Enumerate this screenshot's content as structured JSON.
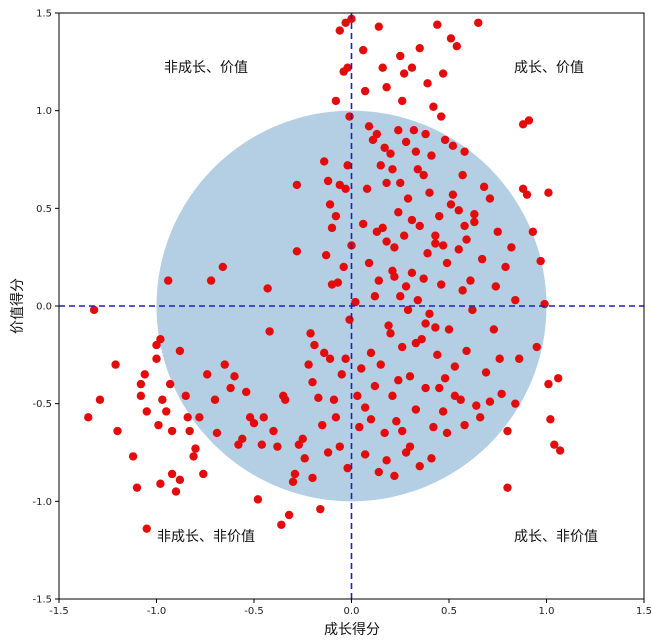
{
  "chart_data": {
    "type": "scatter",
    "xlabel": "成长得分",
    "ylabel": "价值得分",
    "xlim": [
      -1.5,
      1.5
    ],
    "ylim": [
      -1.5,
      1.5
    ],
    "xticks": [
      "-1.5",
      "-1.0",
      "-0.5",
      "0.0",
      "0.5",
      "1.0",
      "1.5"
    ],
    "yticks": [
      "-1.5",
      "-1.0",
      "-0.5",
      "0.0",
      "0.5",
      "1.0",
      "1.5"
    ],
    "grid": false,
    "reference_lines": {
      "x": 0,
      "y": 0,
      "style": "dashed",
      "color": "#1f1fbf"
    },
    "circle": {
      "center": [
        0,
        0
      ],
      "radius": 1,
      "color": "#b4cfe4"
    },
    "quadrant_labels": {
      "top_left": "非成长、价值",
      "top_right": "成长、价值",
      "bottom_left": "非成长、非价值",
      "bottom_right": "成长、非价值"
    },
    "point_color": "#e30b0b",
    "points": [
      [
        -1.32,
        -0.02
      ],
      [
        -1.35,
        -0.57
      ],
      [
        -1.29,
        -0.48
      ],
      [
        -1.21,
        -0.3
      ],
      [
        -1.2,
        -0.64
      ],
      [
        -1.12,
        -0.77
      ],
      [
        -1.1,
        -0.93
      ],
      [
        -1.08,
        -0.4
      ],
      [
        -1.08,
        -0.46
      ],
      [
        -1.06,
        -0.35
      ],
      [
        -1.05,
        -0.54
      ],
      [
        -1.05,
        -1.14
      ],
      [
        -1.0,
        -0.2
      ],
      [
        -1.0,
        -0.27
      ],
      [
        -0.99,
        -0.61
      ],
      [
        -0.98,
        -0.17
      ],
      [
        -0.98,
        -0.91
      ],
      [
        -0.97,
        -0.48
      ],
      [
        -0.95,
        -0.54
      ],
      [
        -0.94,
        0.13
      ],
      [
        -0.93,
        -0.4
      ],
      [
        -0.92,
        -0.64
      ],
      [
        -0.92,
        -0.86
      ],
      [
        -0.9,
        -0.95
      ],
      [
        -0.88,
        -0.89
      ],
      [
        -0.88,
        -0.23
      ],
      [
        -0.85,
        -0.46
      ],
      [
        -0.84,
        -0.57
      ],
      [
        -0.83,
        -0.64
      ],
      [
        -0.81,
        -0.77
      ],
      [
        -0.8,
        -0.73
      ],
      [
        -0.78,
        -0.57
      ],
      [
        -0.76,
        -0.86
      ],
      [
        -0.74,
        -0.35
      ],
      [
        -0.72,
        0.13
      ],
      [
        -0.7,
        -0.48
      ],
      [
        -0.69,
        -0.65
      ],
      [
        -0.66,
        0.2
      ],
      [
        -0.65,
        -0.3
      ],
      [
        -0.62,
        -0.42
      ],
      [
        -0.6,
        -0.36
      ],
      [
        -0.58,
        -0.71
      ],
      [
        -0.56,
        -0.68
      ],
      [
        -0.54,
        -0.44
      ],
      [
        -0.52,
        -0.57
      ],
      [
        -0.5,
        -0.6
      ],
      [
        -0.48,
        -0.99
      ],
      [
        -0.46,
        -0.71
      ],
      [
        -0.45,
        -0.57
      ],
      [
        -0.43,
        0.09
      ],
      [
        -0.42,
        -0.13
      ],
      [
        -0.4,
        -0.64
      ],
      [
        -0.38,
        -0.72
      ],
      [
        -0.36,
        -1.12
      ],
      [
        -0.35,
        -0.46
      ],
      [
        -0.34,
        -0.48
      ],
      [
        -0.32,
        -1.07
      ],
      [
        -0.3,
        -0.9
      ],
      [
        -0.29,
        -0.86
      ],
      [
        -0.28,
        0.62
      ],
      [
        -0.28,
        0.28
      ],
      [
        -0.27,
        -0.71
      ],
      [
        -0.25,
        -0.68
      ],
      [
        -0.24,
        -0.78
      ],
      [
        -0.22,
        -0.3
      ],
      [
        -0.21,
        -0.14
      ],
      [
        -0.2,
        -0.88
      ],
      [
        -0.2,
        -0.39
      ],
      [
        -0.19,
        -0.2
      ],
      [
        -0.17,
        -0.47
      ],
      [
        -0.16,
        -1.04
      ],
      [
        -0.15,
        -0.61
      ],
      [
        -0.14,
        -0.24
      ],
      [
        -0.13,
        0.26
      ],
      [
        -0.12,
        -0.75
      ],
      [
        -0.12,
        0.64
      ],
      [
        -0.11,
        -0.27
      ],
      [
        -0.1,
        0.4
      ],
      [
        -0.1,
        0.11
      ],
      [
        -0.09,
        -0.48
      ],
      [
        -0.08,
        -0.57
      ],
      [
        -0.08,
        0.46
      ],
      [
        -0.07,
        0.12
      ],
      [
        -0.06,
        -0.72
      ],
      [
        -0.06,
        0.62
      ],
      [
        -0.05,
        -0.35
      ],
      [
        -0.04,
        0.2
      ],
      [
        -0.03,
        -0.27
      ],
      [
        -0.03,
        1.45
      ],
      [
        -0.03,
        0.6
      ],
      [
        -0.02,
        -0.83
      ],
      [
        -0.01,
        -0.07
      ],
      [
        -0.01,
        0.97
      ],
      [
        -0.02,
        1.22
      ],
      [
        -0.02,
        0.72
      ],
      [
        -0.04,
        1.2
      ],
      [
        -0.06,
        1.41
      ],
      [
        -0.08,
        1.05
      ],
      [
        -0.11,
        0.52
      ],
      [
        -0.14,
        0.74
      ],
      [
        0.0,
        0.31
      ],
      [
        0.02,
        0.02
      ],
      [
        0.04,
        -0.62
      ],
      [
        0.05,
        -0.32
      ],
      [
        0.06,
        1.31
      ],
      [
        0.07,
        -0.52
      ],
      [
        0.08,
        0.6
      ],
      [
        0.09,
        0.92
      ],
      [
        0.1,
        -0.24
      ],
      [
        0.11,
        0.85
      ],
      [
        0.12,
        -0.41
      ],
      [
        0.13,
        0.38
      ],
      [
        0.14,
        0.13
      ],
      [
        0.15,
        -0.3
      ],
      [
        0.16,
        1.22
      ],
      [
        0.16,
        0.4
      ],
      [
        0.17,
        -0.65
      ],
      [
        0.18,
        0.63
      ],
      [
        0.19,
        -0.1
      ],
      [
        0.2,
        0.78
      ],
      [
        0.21,
        0.18
      ],
      [
        0.21,
        -0.46
      ],
      [
        0.22,
        0.3
      ],
      [
        0.23,
        -0.59
      ],
      [
        0.24,
        0.48
      ],
      [
        0.25,
        0.05
      ],
      [
        0.26,
        -0.21
      ],
      [
        0.27,
        1.19
      ],
      [
        0.27,
        0.36
      ],
      [
        0.28,
        -0.75
      ],
      [
        0.29,
        0.55
      ],
      [
        0.3,
        -0.36
      ],
      [
        0.31,
        0.17
      ],
      [
        0.32,
        0.9
      ],
      [
        0.33,
        -0.53
      ],
      [
        0.34,
        0.03
      ],
      [
        0.35,
        0.41
      ],
      [
        0.36,
        -0.17
      ],
      [
        0.37,
        0.67
      ],
      [
        0.38,
        -0.42
      ],
      [
        0.39,
        0.27
      ],
      [
        0.4,
        -0.04
      ],
      [
        0.41,
        0.77
      ],
      [
        0.42,
        -0.62
      ],
      [
        0.43,
        0.32
      ],
      [
        0.44,
        -0.25
      ],
      [
        0.45,
        0.46
      ],
      [
        0.46,
        0.11
      ],
      [
        0.47,
        -0.54
      ],
      [
        0.48,
        0.85
      ],
      [
        0.49,
        0.22
      ],
      [
        0.5,
        -0.12
      ],
      [
        0.51,
        1.37
      ],
      [
        0.52,
        0.57
      ],
      [
        0.53,
        -0.31
      ],
      [
        0.54,
        1.33
      ],
      [
        0.55,
        0.29
      ],
      [
        0.56,
        -0.48
      ],
      [
        0.57,
        0.67
      ],
      [
        0.58,
        0.41
      ],
      [
        0.59,
        -0.23
      ],
      [
        0.61,
        0.13
      ],
      [
        0.63,
        0.43
      ],
      [
        0.64,
        -0.51
      ],
      [
        0.65,
        1.45
      ],
      [
        0.67,
        0.24
      ],
      [
        0.69,
        -0.34
      ],
      [
        0.71,
        0.55
      ],
      [
        0.73,
        -0.12
      ],
      [
        0.75,
        0.38
      ],
      [
        0.77,
        -0.45
      ],
      [
        0.79,
        0.2
      ],
      [
        0.8,
        -0.64
      ],
      [
        0.8,
        -0.93
      ],
      [
        0.82,
        0.3
      ],
      [
        0.84,
        0.03
      ],
      [
        0.86,
        -0.27
      ],
      [
        0.88,
        0.93
      ],
      [
        0.88,
        0.6
      ],
      [
        0.9,
        0.57
      ],
      [
        0.91,
        0.95
      ],
      [
        0.93,
        0.38
      ],
      [
        0.95,
        -0.21
      ],
      [
        0.97,
        0.23
      ],
      [
        0.99,
        0.01
      ],
      [
        1.01,
        -0.4
      ],
      [
        1.01,
        0.58
      ],
      [
        1.02,
        -0.58
      ],
      [
        1.04,
        -0.71
      ],
      [
        1.06,
        -0.37
      ],
      [
        1.07,
        -0.74
      ],
      [
        0.84,
        -0.5
      ],
      [
        0.74,
        0.1
      ],
      [
        0.68,
        0.61
      ],
      [
        0.62,
        -0.02
      ],
      [
        0.57,
        0.08
      ],
      [
        0.49,
        -0.65
      ],
      [
        0.45,
        -0.42
      ],
      [
        0.41,
        -0.78
      ],
      [
        0.35,
        -0.82
      ],
      [
        0.3,
        -0.72
      ],
      [
        0.26,
        -0.64
      ],
      [
        0.22,
        -0.87
      ],
      [
        0.18,
        -0.79
      ],
      [
        0.14,
        -0.85
      ],
      [
        0.1,
        -0.58
      ],
      [
        0.07,
        -0.76
      ],
      [
        0.03,
        -0.46
      ],
      [
        0.06,
        0.42
      ],
      [
        0.09,
        0.22
      ],
      [
        0.12,
        0.05
      ],
      [
        0.15,
        0.72
      ],
      [
        0.18,
        0.33
      ],
      [
        0.22,
        0.15
      ],
      [
        0.25,
        0.63
      ],
      [
        0.28,
        0.1
      ],
      [
        0.31,
        0.44
      ],
      [
        0.34,
        0.7
      ],
      [
        0.37,
        0.14
      ],
      [
        0.4,
        0.58
      ],
      [
        0.43,
        0.36
      ],
      [
        0.47,
        0.31
      ],
      [
        0.51,
        0.52
      ],
      [
        0.55,
        0.49
      ],
      [
        0.59,
        0.34
      ],
      [
        0.63,
        0.47
      ],
      [
        0.13,
        0.88
      ],
      [
        0.17,
        0.81
      ],
      [
        0.21,
        0.7
      ],
      [
        0.24,
        0.9
      ],
      [
        0.28,
        0.84
      ],
      [
        0.33,
        0.79
      ],
      [
        0.38,
        0.88
      ],
      [
        0.42,
        1.02
      ],
      [
        0.46,
        0.97
      ],
      [
        0.52,
        0.82
      ],
      [
        0.58,
        0.79
      ],
      [
        0.2,
        -0.14
      ],
      [
        0.24,
        -0.38
      ],
      [
        0.29,
        -0.02
      ],
      [
        0.33,
        -0.19
      ],
      [
        0.38,
        -0.09
      ],
      [
        0.43,
        -0.11
      ],
      [
        0.48,
        -0.37
      ],
      [
        0.53,
        -0.46
      ],
      [
        0.58,
        -0.61
      ],
      [
        0.66,
        -0.57
      ],
      [
        0.71,
        -0.49
      ],
      [
        0.76,
        -0.27
      ],
      [
        0.44,
        1.44
      ],
      [
        0.25,
        1.28
      ],
      [
        0.35,
        1.32
      ],
      [
        0.31,
        1.22
      ],
      [
        0.14,
        1.43
      ],
      [
        0.07,
        1.1
      ],
      [
        0.18,
        1.12
      ],
      [
        0.26,
        1.05
      ],
      [
        0.39,
        1.14
      ],
      [
        0.47,
        1.19
      ],
      [
        0.0,
        1.47
      ]
    ]
  }
}
